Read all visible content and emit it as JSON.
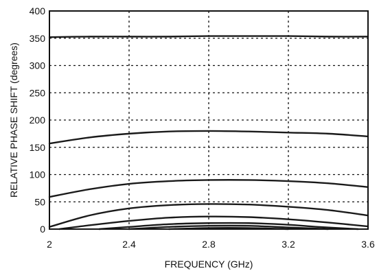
{
  "chart_data": {
    "type": "line",
    "title": "",
    "xlabel": "FREQUENCY (GHz)",
    "ylabel": "RELATIVE PHASE SHIFT  (degrees)",
    "xlim": [
      2,
      3.6
    ],
    "ylim": [
      0,
      400
    ],
    "xticks": [
      "2",
      "2.4",
      "2.8",
      "3.2",
      "3.6"
    ],
    "yticks": [
      "0",
      "50",
      "100",
      "150",
      "200",
      "250",
      "300",
      "350",
      "400"
    ],
    "grid": true,
    "series": [
      {
        "x": [
          2.0,
          2.2,
          2.4,
          2.6,
          2.8,
          3.0,
          3.2,
          3.4,
          3.6
        ],
        "values": [
          352,
          353,
          353,
          353,
          354,
          354,
          354,
          353,
          353
        ]
      },
      {
        "x": [
          2.0,
          2.2,
          2.4,
          2.6,
          2.8,
          3.0,
          3.2,
          3.4,
          3.6
        ],
        "values": [
          157,
          168,
          175,
          179,
          180,
          179,
          177,
          175,
          170
        ]
      },
      {
        "x": [
          2.0,
          2.2,
          2.4,
          2.6,
          2.8,
          3.0,
          3.2,
          3.4,
          3.6
        ],
        "values": [
          59,
          73,
          83,
          88,
          90,
          90,
          88,
          84,
          77
        ]
      },
      {
        "x": [
          2.0,
          2.2,
          2.4,
          2.6,
          2.8,
          3.0,
          3.2,
          3.4,
          3.6
        ],
        "values": [
          4,
          25,
          38,
          44,
          46,
          45,
          41,
          35,
          25
        ]
      },
      {
        "x": [
          2.05,
          2.2,
          2.4,
          2.6,
          2.8,
          3.0,
          3.2,
          3.4,
          3.6
        ],
        "values": [
          0,
          7,
          15,
          21,
          23,
          22,
          18,
          12,
          5
        ]
      },
      {
        "x": [
          2.25,
          2.4,
          2.6,
          2.8,
          3.0,
          3.2,
          3.35,
          3.55
        ],
        "values": [
          0,
          4,
          9,
          11,
          11,
          8,
          4,
          0
        ]
      },
      {
        "x": [
          2.4,
          2.6,
          2.8,
          3.0,
          3.2,
          3.4
        ],
        "values": [
          0,
          4,
          6,
          6,
          3,
          0
        ]
      },
      {
        "x": [
          2.6,
          2.8,
          3.0,
          3.2
        ],
        "values": [
          0,
          2,
          2,
          0
        ]
      }
    ]
  }
}
